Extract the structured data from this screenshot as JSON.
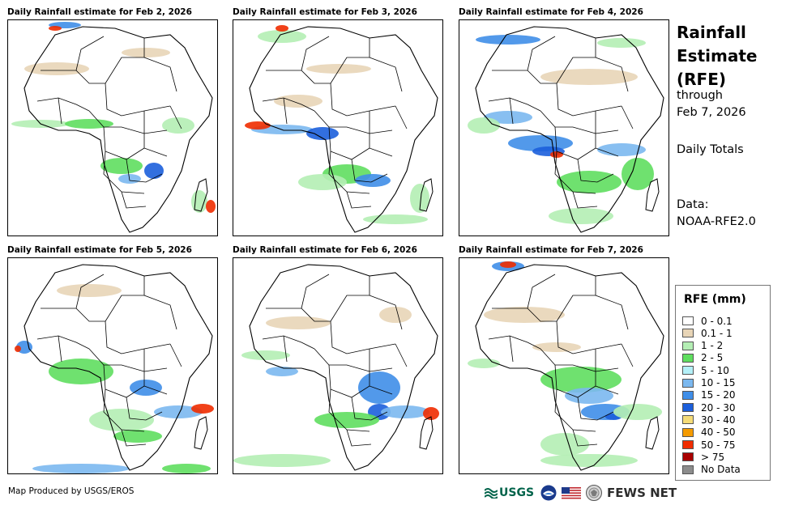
{
  "panels": [
    {
      "title": "Daily Rainfall estimate for Feb 2, 2026"
    },
    {
      "title": "Daily Rainfall estimate for Feb 3, 2026"
    },
    {
      "title": "Daily Rainfall estimate for Feb 4, 2026"
    },
    {
      "title": "Daily Rainfall estimate for Feb 5, 2026"
    },
    {
      "title": "Daily Rainfall estimate for Feb 6, 2026"
    },
    {
      "title": "Daily Rainfall estimate for Feb 7, 2026"
    }
  ],
  "side": {
    "title_line1": "Rainfall",
    "title_line2": "Estimate",
    "title_line3": "(RFE)",
    "through": "through",
    "date": "Feb 7, 2026",
    "totals": "Daily Totals",
    "data_label": "Data:",
    "data_source": "NOAA-RFE2.0"
  },
  "legend": {
    "title": "RFE (mm)",
    "items": [
      {
        "label": "0 - 0.1",
        "color": "#ffffff"
      },
      {
        "label": "0.1 - 1",
        "color": "#e8d5b7"
      },
      {
        "label": "1 - 2",
        "color": "#b4eeb4"
      },
      {
        "label": "2 - 5",
        "color": "#5fde5f"
      },
      {
        "label": "5 - 10",
        "color": "#b4f0f8"
      },
      {
        "label": "10 - 15",
        "color": "#7bb8ef"
      },
      {
        "label": "15 - 20",
        "color": "#3f8ee8"
      },
      {
        "label": "20 - 30",
        "color": "#1c5fdb"
      },
      {
        "label": "30 - 40",
        "color": "#f5dc78"
      },
      {
        "label": "40 - 50",
        "color": "#f59b00"
      },
      {
        "label": "50 - 75",
        "color": "#f02c00"
      },
      {
        "label": "> 75",
        "color": "#a80000"
      },
      {
        "label": "No Data",
        "color": "#8c8c8c"
      }
    ]
  },
  "footer": {
    "credit": "Map Produced by USGS/EROS",
    "usgs": "USGS",
    "fews": "FEWS NET"
  }
}
